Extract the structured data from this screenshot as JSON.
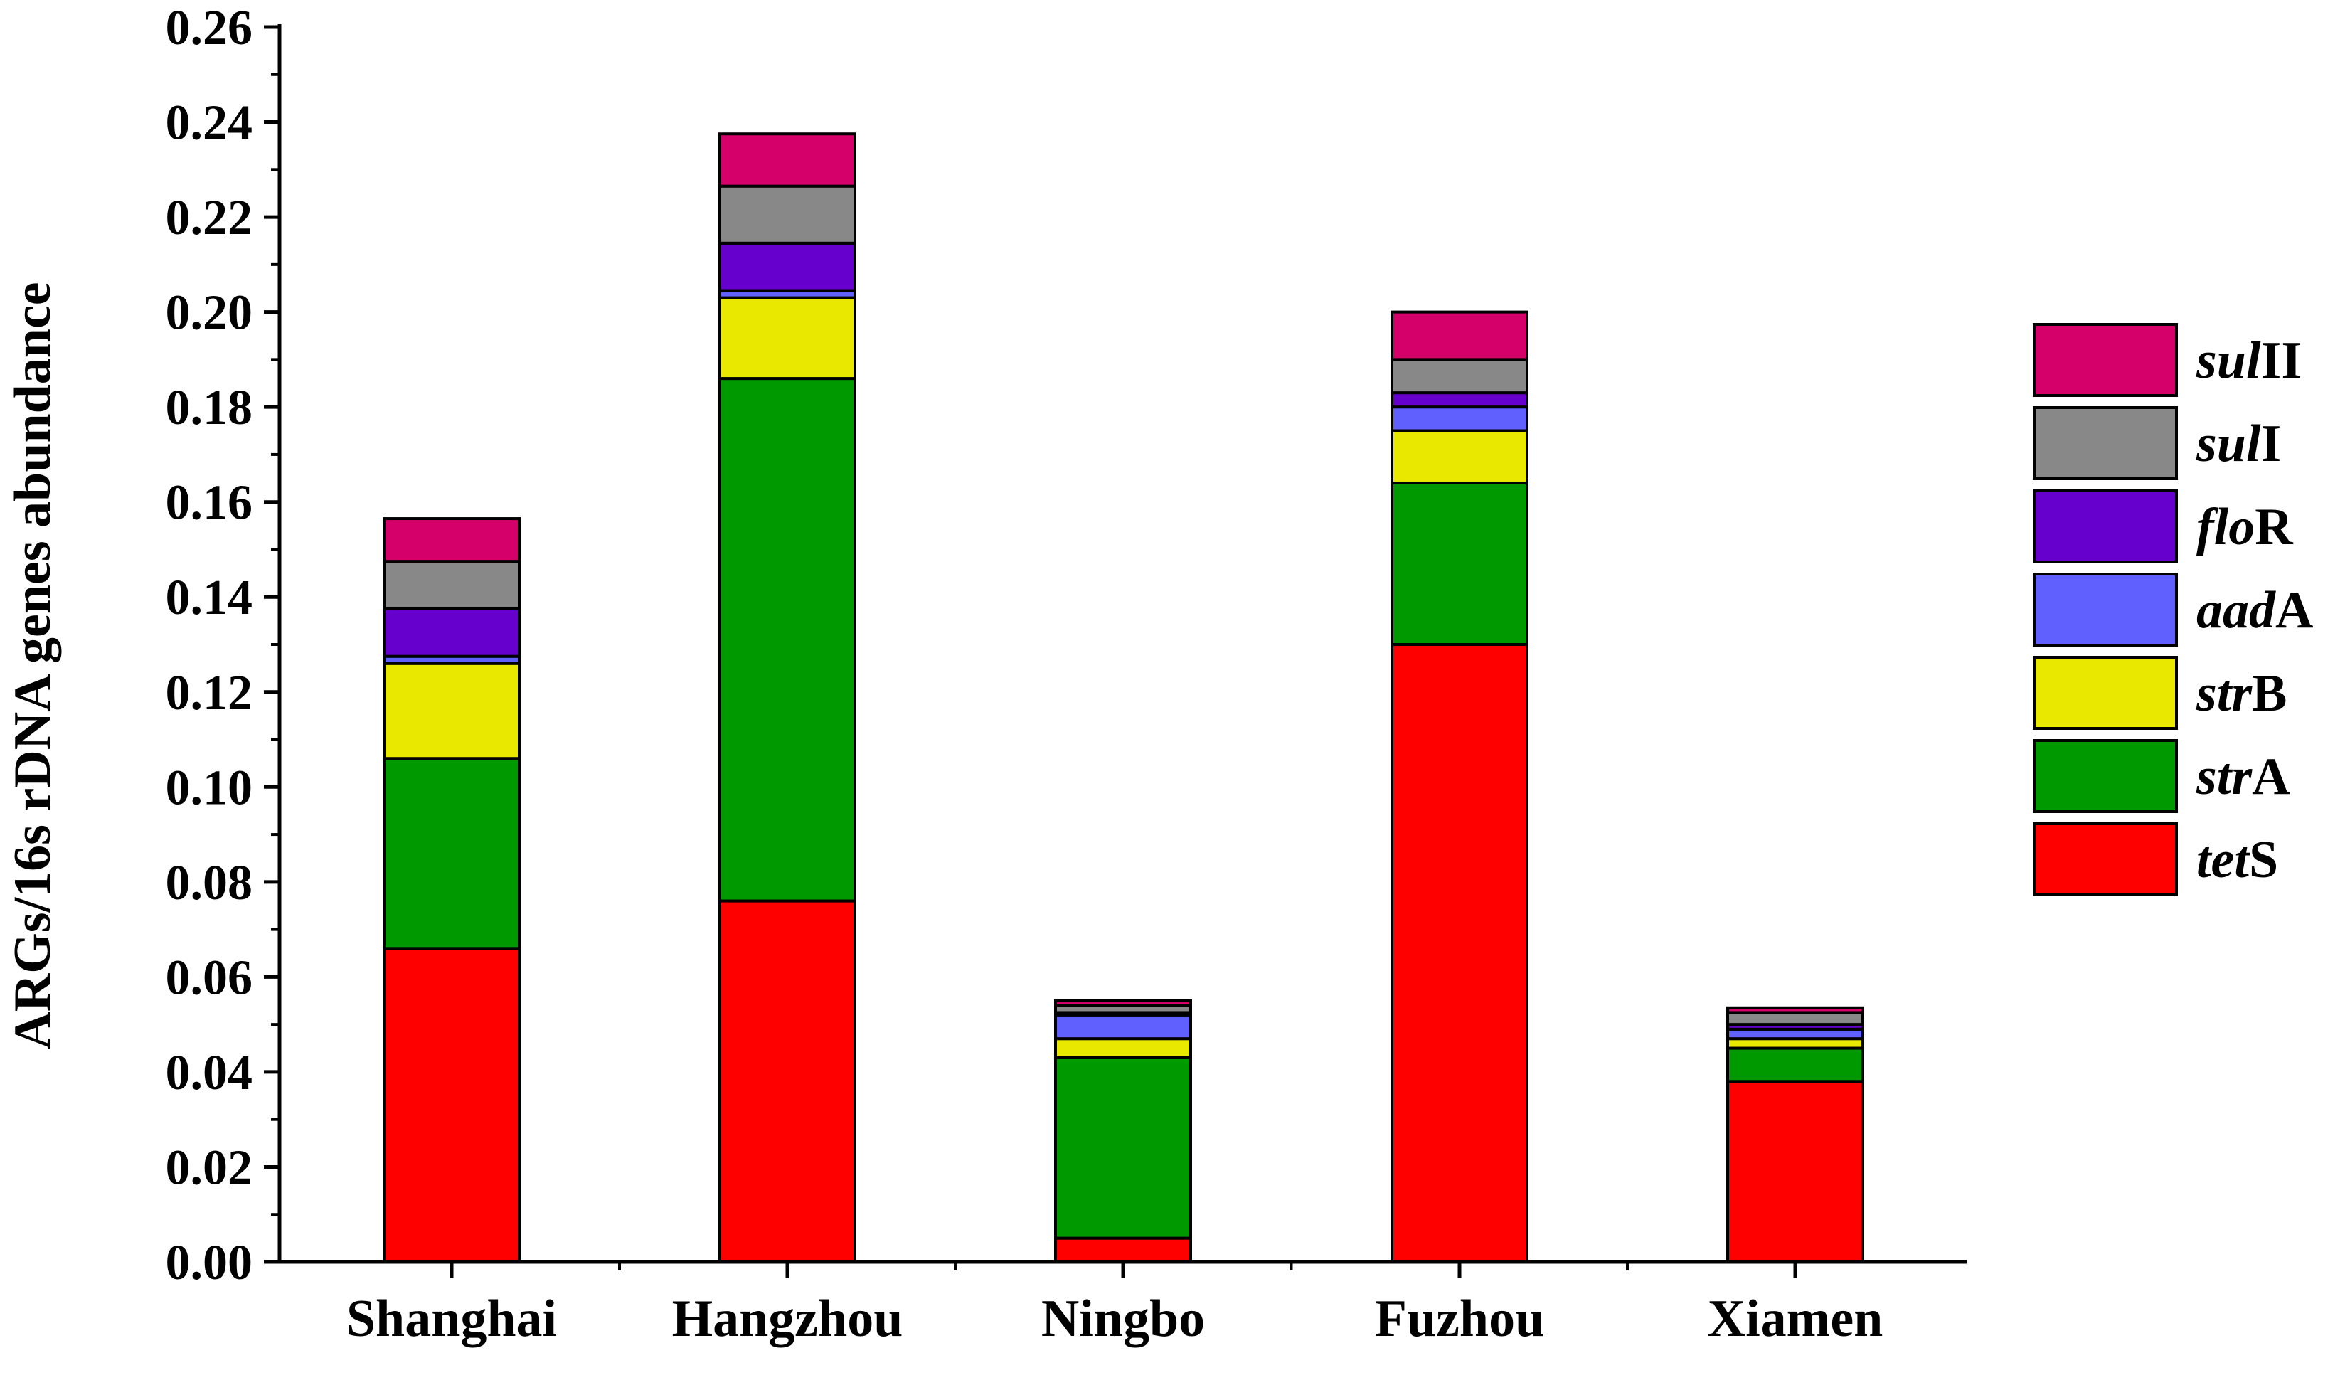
{
  "chart_data": {
    "type": "bar",
    "stacked": true,
    "title": "",
    "xlabel": "",
    "ylabel": "ARGs/16s rDNA genes abundance",
    "ylim": [
      0,
      0.26
    ],
    "y_tick_step": 0.02,
    "y_tick_format_decimals": 2,
    "grid": false,
    "legend_position": "right",
    "categories": [
      "Shanghai",
      "Hangzhou",
      "Ningbo",
      "Fuzhou",
      "Xiamen"
    ],
    "series": [
      {
        "name": "tetS",
        "legend_italic": "tet",
        "legend_plain": "S",
        "color": "#ff0000",
        "values": [
          0.066,
          0.076,
          0.005,
          0.13,
          0.038
        ]
      },
      {
        "name": "strA",
        "legend_italic": "str",
        "legend_plain": "A",
        "color": "#009900",
        "values": [
          0.04,
          0.11,
          0.038,
          0.034,
          0.007
        ]
      },
      {
        "name": "strB",
        "legend_italic": "str",
        "legend_plain": "B",
        "color": "#e8e800",
        "values": [
          0.02,
          0.017,
          0.004,
          0.011,
          0.002
        ]
      },
      {
        "name": "aadA",
        "legend_italic": "aad",
        "legend_plain": "A",
        "color": "#6060ff",
        "values": [
          0.0015,
          0.0015,
          0.005,
          0.005,
          0.002
        ]
      },
      {
        "name": "floR",
        "legend_italic": "flo",
        "legend_plain": "R",
        "color": "#6600cc",
        "values": [
          0.01,
          0.01,
          0.0005,
          0.003,
          0.001
        ]
      },
      {
        "name": "sulI",
        "legend_italic": "sul",
        "legend_plain": "I",
        "color": "#888888",
        "values": [
          0.01,
          0.012,
          0.0015,
          0.007,
          0.0025
        ]
      },
      {
        "name": "sulII",
        "legend_italic": "sul",
        "legend_plain": "II",
        "color": "#d6006a",
        "values": [
          0.009,
          0.011,
          0.001,
          0.01,
          0.001
        ]
      }
    ]
  }
}
